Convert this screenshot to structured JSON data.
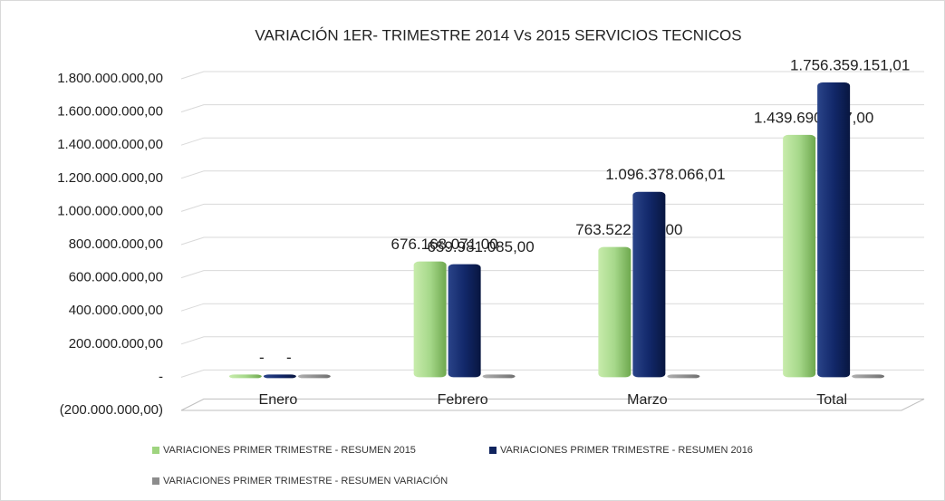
{
  "chart_data": {
    "type": "bar",
    "title": "VARIACIÓN 1ER- TRIMESTRE 2014 Vs 2015 SERVICIOS TECNICOS",
    "categories": [
      "Enero",
      "Febrero",
      "Marzo",
      "Total"
    ],
    "series": [
      {
        "name": "VARIACIONES PRIMER TRIMESTRE - RESUMEN 2015",
        "color": "#9fd47f",
        "values": [
          0,
          676168071,
          763522286,
          1439690357
        ],
        "value_labels": [
          "-",
          "676.168.071,00",
          "763.522.286,00",
          "1.439.690.357,00"
        ]
      },
      {
        "name": "VARIACIONES PRIMER TRIMESTRE - RESUMEN 2016",
        "color": "#10245e",
        "values": [
          0,
          659981085,
          1096378066.01,
          1756359151.01
        ],
        "value_labels": [
          "-",
          "659.981.085,00",
          "1.096.378.066,01",
          "1.756.359.151,01"
        ]
      },
      {
        "name": "VARIACIONES PRIMER TRIMESTRE - RESUMEN VARIACIÓN",
        "color": "#8c8c8c",
        "values": [
          0,
          0,
          0,
          0
        ]
      }
    ],
    "ylim": [
      -200000000,
      1800000000
    ],
    "yticks": [
      {
        "value": -200000000,
        "label": "(200.000.000,00)"
      },
      {
        "value": 0,
        "label": "-"
      },
      {
        "value": 200000000,
        "label": "200.000.000,00"
      },
      {
        "value": 400000000,
        "label": "400.000.000,00"
      },
      {
        "value": 600000000,
        "label": "600.000.000,00"
      },
      {
        "value": 800000000,
        "label": "800.000.000,00"
      },
      {
        "value": 1000000000,
        "label": "1.000.000.000,00"
      },
      {
        "value": 1200000000,
        "label": "1.200.000.000,00"
      },
      {
        "value": 1400000000,
        "label": "1.400.000.000,00"
      },
      {
        "value": 1600000000,
        "label": "1.600.000.000,00"
      },
      {
        "value": 1800000000,
        "label": "1.800.000.000,00"
      }
    ],
    "grid": true
  }
}
